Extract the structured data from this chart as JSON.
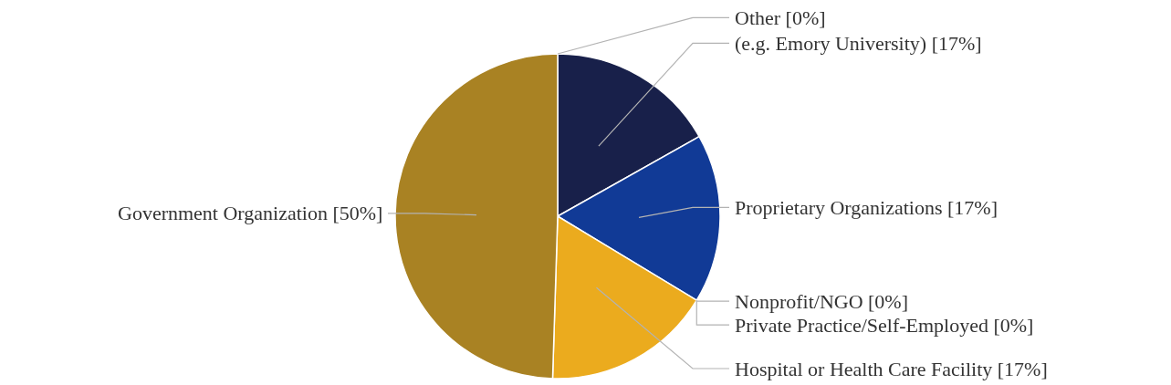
{
  "chart_data": {
    "type": "pie",
    "categories": [
      "(e.g. Emory University) [17%]",
      "Proprietary Organizations [17%]",
      "Nonprofit/NGO [0%]",
      "Private Practice/Self-Employed [0%]",
      "Hospital or Health Care Facility [17%]",
      "Government Organization [50%]",
      "Other [0%]"
    ],
    "values": [
      17,
      17,
      0,
      0,
      17,
      50,
      0
    ],
    "colors": [
      "#18204a",
      "#113a96",
      "#6b6b6b",
      "#8a8a8a",
      "#ebab1e",
      "#a98223",
      "#c0c0c0"
    ]
  }
}
